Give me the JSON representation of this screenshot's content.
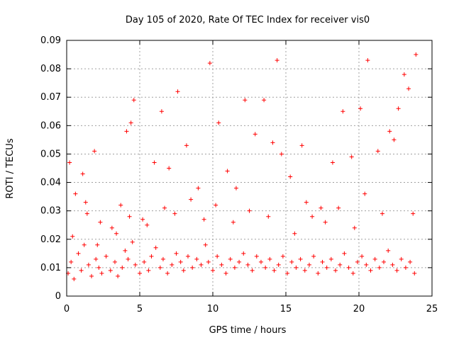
{
  "chart_data": {
    "type": "scatter",
    "title": "Day 105 of 2020, Rate Of TEC Index for receiver vis0",
    "xlabel": "GPS time / hours",
    "ylabel": "ROTI / TECUs",
    "xlim": [
      0,
      25
    ],
    "ylim": [
      0,
      0.09
    ],
    "xticks": [
      0,
      5,
      10,
      15,
      20,
      25
    ],
    "xtick_labels": [
      "0",
      "5",
      "10",
      "15",
      "20",
      "25"
    ],
    "yticks": [
      0,
      0.01,
      0.02,
      0.03,
      0.04,
      0.05,
      0.06,
      0.07,
      0.08,
      0.09
    ],
    "ytick_labels": [
      "0",
      "0.01",
      "0.02",
      "0.03",
      "0.04",
      "0.05",
      "0.06",
      "0.07",
      "0.08",
      "0.09"
    ],
    "grid": true,
    "marker": "plus",
    "color": "#ff0000",
    "series": [
      {
        "name": "ROTI (vis0)",
        "x": [
          0.1,
          0.3,
          0.5,
          0.8,
          1.0,
          1.2,
          1.5,
          1.7,
          2.0,
          2.2,
          2.4,
          2.7,
          3.0,
          3.3,
          3.5,
          3.8,
          4.0,
          4.2,
          4.5,
          4.7,
          5.0,
          5.3,
          5.6,
          5.8,
          6.1,
          6.4,
          6.6,
          6.9,
          7.2,
          7.5,
          7.8,
          8.0,
          8.3,
          8.6,
          8.9,
          9.2,
          9.5,
          9.7,
          10.0,
          10.3,
          10.6,
          10.9,
          11.2,
          11.5,
          11.8,
          12.1,
          12.4,
          12.7,
          13.0,
          13.3,
          13.6,
          13.9,
          14.2,
          14.5,
          14.8,
          15.1,
          15.4,
          15.7,
          16.0,
          16.3,
          16.6,
          16.9,
          17.2,
          17.5,
          17.8,
          18.1,
          18.4,
          18.7,
          19.0,
          19.3,
          19.6,
          19.9,
          20.2,
          20.5,
          20.8,
          21.1,
          21.4,
          21.7,
          22.0,
          22.3,
          22.6,
          22.9,
          23.2,
          23.5,
          23.8,
          0.2,
          0.6,
          1.1,
          1.4,
          1.9,
          2.3,
          3.1,
          3.7,
          4.1,
          4.4,
          4.6,
          5.2,
          6.0,
          6.5,
          7.0,
          7.6,
          8.2,
          9.0,
          9.8,
          10.4,
          11.0,
          11.6,
          12.2,
          12.9,
          13.5,
          14.1,
          14.7,
          15.3,
          16.1,
          16.8,
          17.4,
          18.2,
          18.9,
          19.5,
          20.1,
          20.6,
          21.3,
          22.1,
          22.7,
          23.4,
          23.9,
          0.4,
          1.3,
          2.1,
          3.4,
          4.3,
          5.5,
          6.7,
          7.4,
          8.5,
          9.4,
          10.2,
          11.4,
          12.5,
          13.8,
          14.4,
          15.6,
          16.4,
          17.7,
          18.6,
          19.7,
          20.4,
          21.6,
          22.4,
          23.1,
          23.7
        ],
        "y": [
          0.008,
          0.012,
          0.006,
          0.015,
          0.009,
          0.018,
          0.011,
          0.007,
          0.013,
          0.01,
          0.008,
          0.014,
          0.009,
          0.012,
          0.007,
          0.01,
          0.016,
          0.013,
          0.019,
          0.011,
          0.008,
          0.012,
          0.009,
          0.014,
          0.017,
          0.01,
          0.013,
          0.008,
          0.011,
          0.015,
          0.012,
          0.009,
          0.014,
          0.01,
          0.013,
          0.011,
          0.018,
          0.012,
          0.009,
          0.014,
          0.011,
          0.008,
          0.013,
          0.01,
          0.012,
          0.015,
          0.011,
          0.009,
          0.014,
          0.012,
          0.01,
          0.013,
          0.009,
          0.011,
          0.014,
          0.008,
          0.012,
          0.01,
          0.013,
          0.009,
          0.011,
          0.014,
          0.008,
          0.012,
          0.01,
          0.013,
          0.009,
          0.011,
          0.015,
          0.01,
          0.008,
          0.012,
          0.014,
          0.011,
          0.009,
          0.013,
          0.01,
          0.012,
          0.016,
          0.011,
          0.009,
          0.013,
          0.01,
          0.012,
          0.008,
          0.047,
          0.036,
          0.043,
          0.029,
          0.051,
          0.026,
          0.024,
          0.032,
          0.058,
          0.061,
          0.069,
          0.027,
          0.047,
          0.065,
          0.045,
          0.072,
          0.053,
          0.038,
          0.082,
          0.061,
          0.044,
          0.038,
          0.069,
          0.057,
          0.069,
          0.054,
          0.05,
          0.042,
          0.053,
          0.028,
          0.031,
          0.047,
          0.065,
          0.049,
          0.066,
          0.083,
          0.051,
          0.058,
          0.066,
          0.073,
          0.085,
          0.021,
          0.033,
          0.018,
          0.022,
          0.028,
          0.025,
          0.031,
          0.029,
          0.034,
          0.027,
          0.032,
          0.026,
          0.03,
          0.028,
          0.083,
          0.022,
          0.033,
          0.026,
          0.031,
          0.024,
          0.036,
          0.029,
          0.055,
          0.078,
          0.029
        ]
      }
    ]
  }
}
